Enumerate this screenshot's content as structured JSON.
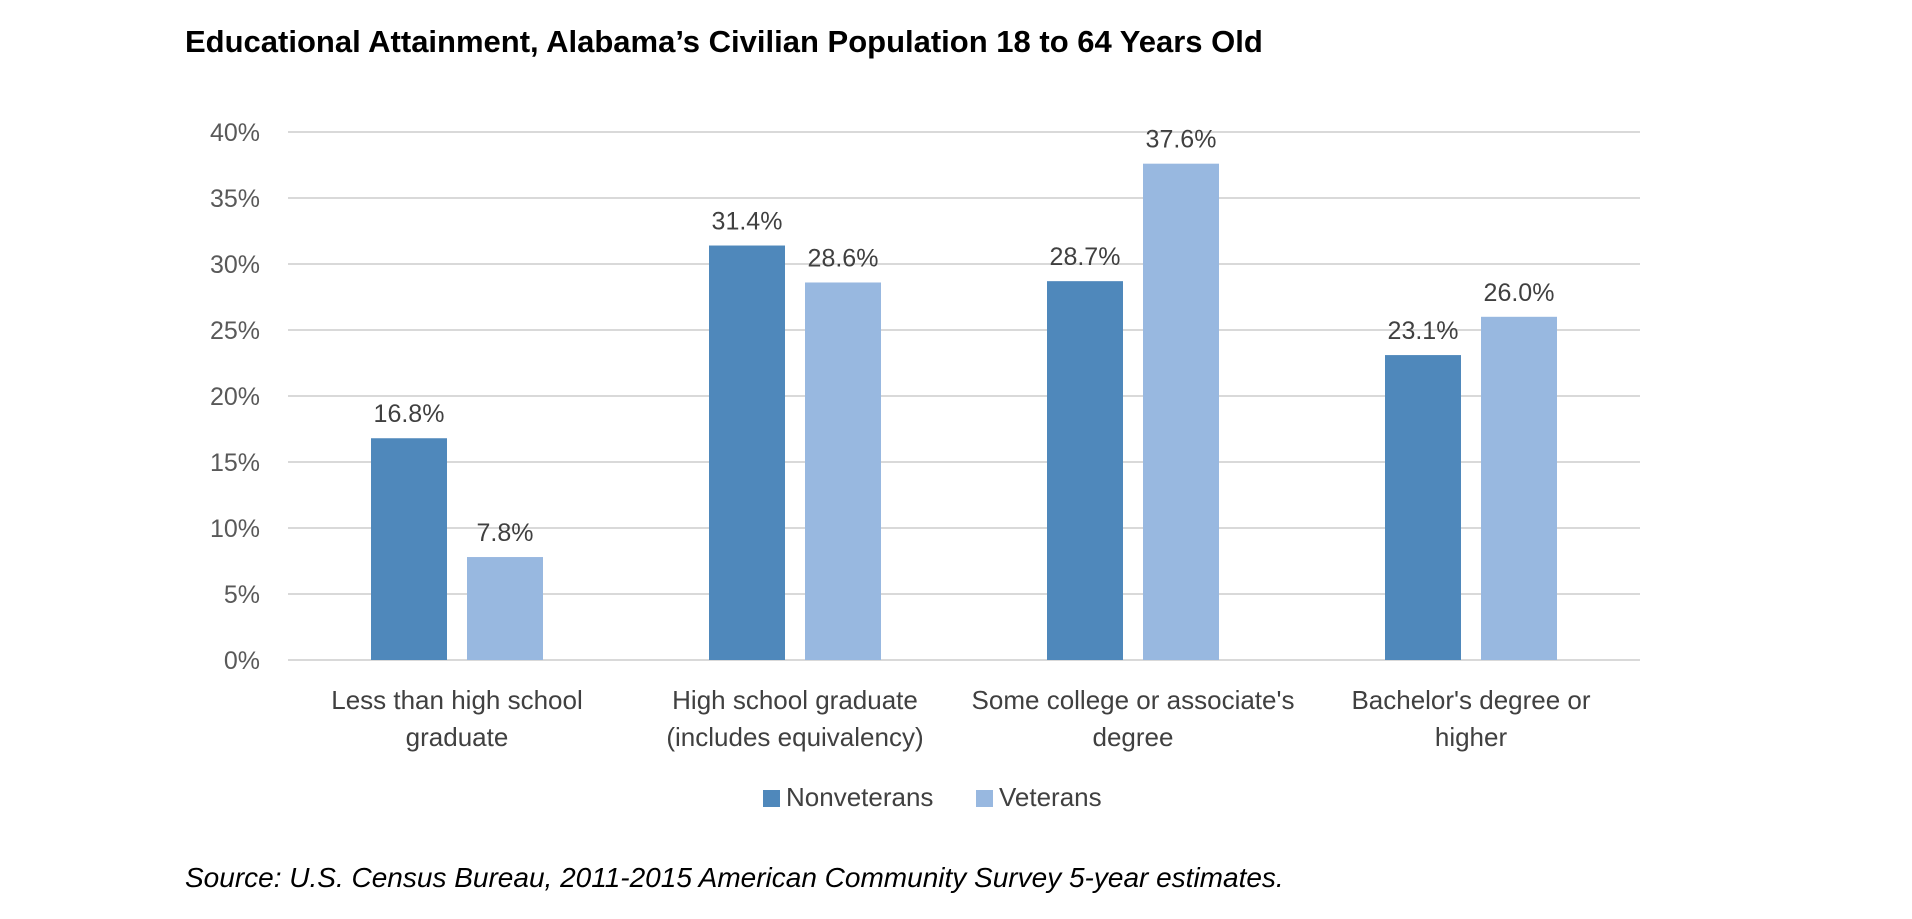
{
  "chart_data": {
    "type": "bar",
    "title": "Educational Attainment, Alabama’s Civilian Population 18 to 64 Years Old",
    "source": "Source: U.S. Census Bureau, 2011-2015 American Community Survey 5-year estimates.",
    "categories": [
      "Less than high school graduate",
      "High school graduate (includes equivalency)",
      "Some college or associate's degree",
      "Bachelor's degree or higher"
    ],
    "category_lines": [
      [
        "Less than high school",
        "graduate"
      ],
      [
        "High school graduate",
        "(includes equivalency)"
      ],
      [
        "Some college or associate's",
        "degree"
      ],
      [
        "Bachelor's degree or",
        "higher"
      ]
    ],
    "series": [
      {
        "name": "Nonveterans",
        "color": "#4f88bb",
        "values": [
          16.8,
          31.4,
          28.7,
          23.1
        ],
        "labels": [
          "16.8%",
          "31.4%",
          "28.7%",
          "23.1%"
        ]
      },
      {
        "name": "Veterans",
        "color": "#98b8e0",
        "values": [
          7.8,
          28.6,
          37.6,
          26.0
        ],
        "labels": [
          "7.8%",
          "28.6%",
          "37.6%",
          "26.0%"
        ]
      }
    ],
    "y_ticks": [
      0,
      5,
      10,
      15,
      20,
      25,
      30,
      35,
      40
    ],
    "y_tick_labels": [
      "0%",
      "5%",
      "10%",
      "15%",
      "20%",
      "25%",
      "30%",
      "35%",
      "40%"
    ],
    "ylim": [
      0,
      40
    ],
    "xlabel": "",
    "ylabel": "",
    "grid": true,
    "gridline_color": "#d9d9d9",
    "legend_position": "bottom"
  }
}
